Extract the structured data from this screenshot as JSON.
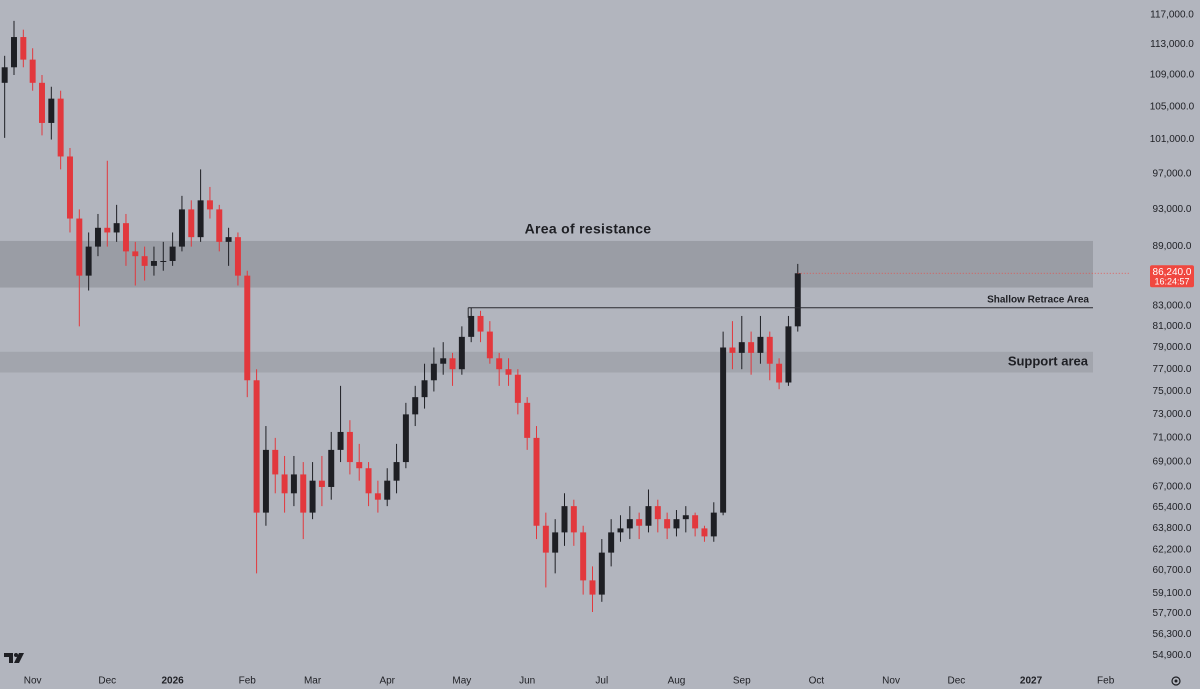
{
  "chart_data": {
    "type": "candlestick",
    "log_scale": true,
    "grid": false,
    "up_color": "#1e1f24",
    "down_color": "#e2383d",
    "ylim": [
      54100,
      119100
    ],
    "yticks": [
      {
        "value": 117000,
        "label": "117,000.0"
      },
      {
        "value": 113000,
        "label": "113,000.0"
      },
      {
        "value": 109000,
        "label": "109,000.0"
      },
      {
        "value": 105000,
        "label": "105,000.0"
      },
      {
        "value": 101000,
        "label": "101,000.0"
      },
      {
        "value": 97000,
        "label": "97,000.0"
      },
      {
        "value": 93000,
        "label": "93,000.0"
      },
      {
        "value": 89000,
        "label": "89,000.0"
      },
      {
        "value": 83000,
        "label": "83,000.0"
      },
      {
        "value": 81000,
        "label": "81,000.0"
      },
      {
        "value": 79000,
        "label": "79,000.0"
      },
      {
        "value": 77000,
        "label": "77,000.0"
      },
      {
        "value": 75000,
        "label": "75,000.0"
      },
      {
        "value": 73000,
        "label": "73,000.0"
      },
      {
        "value": 71000,
        "label": "71,000.0"
      },
      {
        "value": 69000,
        "label": "69,000.0"
      },
      {
        "value": 67000,
        "label": "67,000.0"
      },
      {
        "value": 65400,
        "label": "65,400.0"
      },
      {
        "value": 63800,
        "label": "63,800.0"
      },
      {
        "value": 62200,
        "label": "62,200.0"
      },
      {
        "value": 60700,
        "label": "60,700.0"
      },
      {
        "value": 59100,
        "label": "59,100.0"
      },
      {
        "value": 57700,
        "label": "57,700.0"
      },
      {
        "value": 56300,
        "label": "56,300.0"
      },
      {
        "value": 54900,
        "label": "54,900.0"
      }
    ],
    "categories": [
      null,
      null,
      null,
      "Nov",
      null,
      null,
      null,
      null,
      null,
      null,
      null,
      "Dec",
      null,
      null,
      null,
      null,
      null,
      null,
      "2026",
      null,
      null,
      null,
      null,
      null,
      null,
      null,
      "Feb",
      null,
      null,
      null,
      null,
      null,
      null,
      "Mar",
      null,
      null,
      null,
      null,
      null,
      null,
      null,
      "Apr",
      null,
      null,
      null,
      null,
      null,
      null,
      null,
      "May",
      null,
      null,
      null,
      null,
      null,
      null,
      "Jun",
      null,
      null,
      null,
      null,
      null,
      null,
      null,
      "Jul",
      null,
      null,
      null,
      null,
      null,
      null,
      null,
      "Aug",
      null,
      null,
      null,
      null,
      null,
      null,
      "Sep",
      null,
      null,
      null,
      null,
      null,
      null,
      null,
      "Oct",
      null,
      null,
      null,
      null,
      null,
      null,
      null,
      "Nov",
      null,
      null,
      null,
      null,
      null,
      null,
      "Dec",
      null,
      null,
      null,
      null,
      null,
      null,
      null,
      "2027",
      null,
      null,
      null,
      null,
      null,
      null,
      null,
      "Feb",
      null,
      null
    ],
    "open": [
      108000,
      110000,
      114000,
      111000,
      108000,
      103000,
      106000,
      99000,
      92000,
      86000,
      89000,
      91000,
      90500,
      91500,
      88500,
      88000,
      87000,
      87500,
      87500,
      89000,
      93000,
      90000,
      94000,
      93000,
      89500,
      90000,
      86000,
      76000,
      65000,
      70000,
      68000,
      66500,
      68000,
      65000,
      67500,
      67000,
      70000,
      71500,
      69000,
      68500,
      66500,
      66000,
      67500,
      69000,
      73000,
      74500,
      76000,
      77500,
      78000,
      77000,
      80000,
      82000,
      80500,
      78000,
      77000,
      76500,
      74000,
      71000,
      64000,
      62000,
      63500,
      65500,
      63500,
      60000,
      59000,
      62000,
      63500,
      63800,
      64500,
      64000,
      65500,
      64500,
      63800,
      64500,
      64800,
      63800,
      63200,
      65000,
      79000,
      78500,
      79500,
      78500,
      80000,
      77500,
      75800,
      81000,
      null,
      null,
      null,
      null,
      null,
      null,
      null,
      null,
      null,
      null,
      null,
      null,
      null,
      null,
      null,
      null,
      null,
      null,
      null,
      null,
      null,
      null,
      null,
      null,
      null,
      null,
      null,
      null,
      null,
      null,
      null,
      null,
      null,
      null,
      null
    ],
    "high": [
      111500,
      116200,
      115000,
      112500,
      109000,
      107500,
      107000,
      100000,
      93000,
      90500,
      92500,
      98500,
      93500,
      92500,
      89500,
      89000,
      89000,
      89500,
      90500,
      94500,
      94000,
      97500,
      95500,
      93500,
      91000,
      90500,
      86500,
      77000,
      72000,
      71000,
      69500,
      69500,
      69000,
      69000,
      69500,
      71500,
      75500,
      72500,
      70500,
      69000,
      67500,
      68500,
      70500,
      74000,
      75500,
      77500,
      79000,
      79500,
      78500,
      81000,
      82800,
      82500,
      81500,
      78500,
      78000,
      77000,
      74500,
      72000,
      65000,
      64500,
      66500,
      66000,
      64000,
      61000,
      63000,
      64500,
      64800,
      65500,
      65000,
      66800,
      66000,
      65000,
      65200,
      65500,
      65000,
      64000,
      65800,
      80500,
      81500,
      82000,
      80500,
      82000,
      80500,
      78000,
      82000,
      87200,
      null,
      null,
      null,
      null,
      null,
      null,
      null,
      null,
      null,
      null,
      null,
      null,
      null,
      null,
      null,
      null,
      null,
      null,
      null,
      null,
      null,
      null,
      null,
      null,
      null,
      null,
      null,
      null,
      null,
      null,
      null,
      null,
      null,
      null,
      null
    ],
    "low": [
      101200,
      109000,
      110000,
      107000,
      101500,
      101000,
      97500,
      90500,
      81000,
      84500,
      88000,
      89000,
      89500,
      87000,
      85000,
      85500,
      86000,
      86500,
      87000,
      88500,
      89000,
      89500,
      92000,
      88500,
      87000,
      85000,
      74500,
      60500,
      64000,
      66500,
      65000,
      65500,
      63000,
      64500,
      65500,
      66000,
      69000,
      68000,
      67500,
      65500,
      65000,
      65500,
      66500,
      68500,
      72000,
      73500,
      75000,
      76500,
      75500,
      76500,
      79500,
      79500,
      77500,
      75500,
      75500,
      73000,
      70000,
      63000,
      59500,
      60500,
      62500,
      62500,
      59000,
      57800,
      58500,
      61000,
      62800,
      63000,
      63000,
      63500,
      63500,
      63000,
      63200,
      63500,
      63200,
      62800,
      62800,
      64800,
      77000,
      77000,
      76500,
      77500,
      76000,
      75200,
      75500,
      80500,
      null,
      null,
      null,
      null,
      null,
      null,
      null,
      null,
      null,
      null,
      null,
      null,
      null,
      null,
      null,
      null,
      null,
      null,
      null,
      null,
      null,
      null,
      null,
      null,
      null,
      null,
      null,
      null,
      null,
      null,
      null,
      null,
      null,
      null,
      null
    ],
    "close": [
      110000,
      114000,
      111000,
      108000,
      103000,
      106000,
      99000,
      92000,
      86000,
      89000,
      91000,
      90500,
      91500,
      88500,
      88000,
      87000,
      87500,
      87500,
      89000,
      93000,
      90000,
      94000,
      93000,
      89500,
      90000,
      86000,
      76000,
      65000,
      70000,
      68000,
      66500,
      68000,
      65000,
      67500,
      67000,
      70000,
      71500,
      69000,
      68500,
      66500,
      66000,
      67500,
      69000,
      73000,
      74500,
      76000,
      77500,
      78000,
      77000,
      80000,
      82000,
      80500,
      78000,
      77000,
      76500,
      74000,
      71000,
      64000,
      62000,
      63500,
      65500,
      63500,
      60000,
      59000,
      62000,
      63500,
      63800,
      64500,
      64000,
      65500,
      64500,
      63800,
      64500,
      64800,
      63800,
      63200,
      65000,
      79000,
      78500,
      79500,
      78500,
      80000,
      77500,
      75800,
      81000,
      86240,
      null,
      null,
      null,
      null,
      null,
      null,
      null,
      null,
      null,
      null,
      null,
      null,
      null,
      null,
      null,
      null,
      null,
      null,
      null,
      null,
      null,
      null,
      null,
      null,
      null,
      null,
      null,
      null,
      null,
      null,
      null,
      null,
      null,
      null,
      null
    ],
    "zones": [
      {
        "label": "Area of resistance",
        "ylim": [
          84800,
          89600
        ],
        "color": "#9a9da5"
      },
      {
        "label": "Support area",
        "ylim": [
          76700,
          78600
        ],
        "color": "#a2a5ad"
      }
    ],
    "levels": [
      {
        "label": "Shallow Retrace Area",
        "value": 82800,
        "color": "#2a2b30"
      }
    ],
    "last_price": {
      "value": 86240,
      "label": "86,240.0",
      "color": "#f0473f"
    },
    "countdown": "16:24:57"
  }
}
